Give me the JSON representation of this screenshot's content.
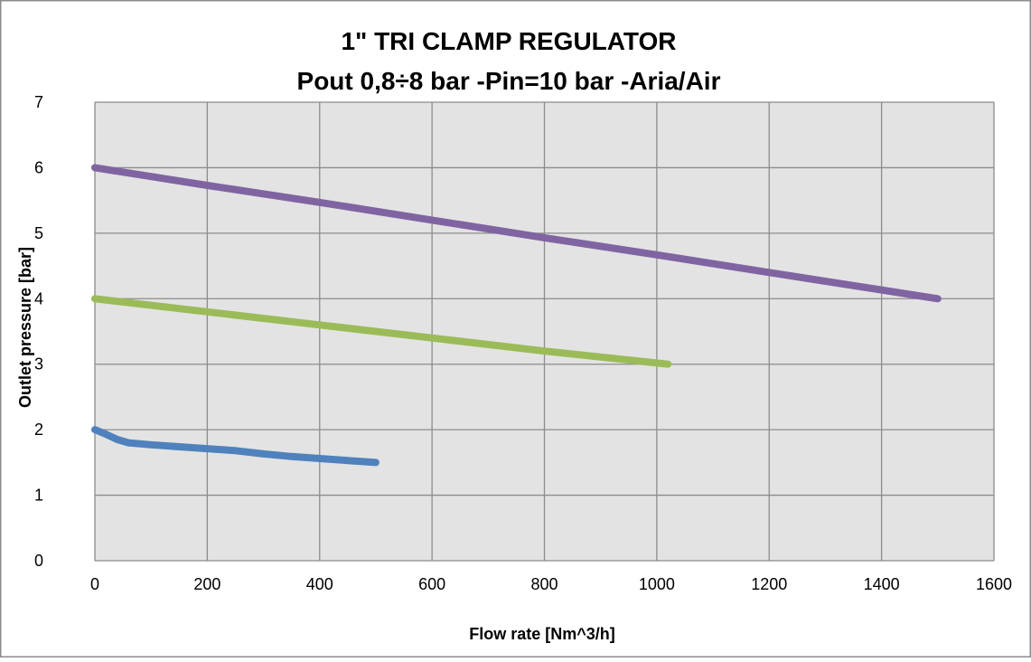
{
  "chart_data": {
    "type": "line",
    "title": "1\" TRI CLAMP REGULATOR",
    "subtitle": "Pout 0,8÷8 bar -Pin=10 bar -Aria/Air",
    "xlabel": "Flow rate [Nm^3/h]",
    "ylabel": "Outlet pressure [bar]",
    "xlim": [
      0,
      1600
    ],
    "ylim": [
      0,
      7
    ],
    "x_ticks": [
      0,
      200,
      400,
      600,
      800,
      1000,
      1200,
      1400,
      1600
    ],
    "y_ticks": [
      0,
      1,
      2,
      3,
      4,
      5,
      6,
      7
    ],
    "grid": true,
    "legend": "none",
    "series": [
      {
        "color": "#4f81bd",
        "points": [
          [
            0,
            2.0
          ],
          [
            20,
            1.93
          ],
          [
            40,
            1.85
          ],
          [
            60,
            1.8
          ],
          [
            100,
            1.77
          ],
          [
            150,
            1.74
          ],
          [
            200,
            1.71
          ],
          [
            250,
            1.68
          ],
          [
            300,
            1.63
          ],
          [
            350,
            1.59
          ],
          [
            400,
            1.56
          ],
          [
            450,
            1.53
          ],
          [
            500,
            1.5
          ]
        ]
      },
      {
        "color": "#9bbb59",
        "points": [
          [
            0,
            4.0
          ],
          [
            200,
            3.8
          ],
          [
            400,
            3.6
          ],
          [
            600,
            3.4
          ],
          [
            800,
            3.2
          ],
          [
            1020,
            3.0
          ]
        ]
      },
      {
        "color": "#8064a2",
        "points": [
          [
            0,
            6.0
          ],
          [
            200,
            5.73
          ],
          [
            400,
            5.47
          ],
          [
            600,
            5.2
          ],
          [
            800,
            4.93
          ],
          [
            1000,
            4.67
          ],
          [
            1200,
            4.4
          ],
          [
            1500,
            4.0
          ]
        ]
      }
    ]
  }
}
